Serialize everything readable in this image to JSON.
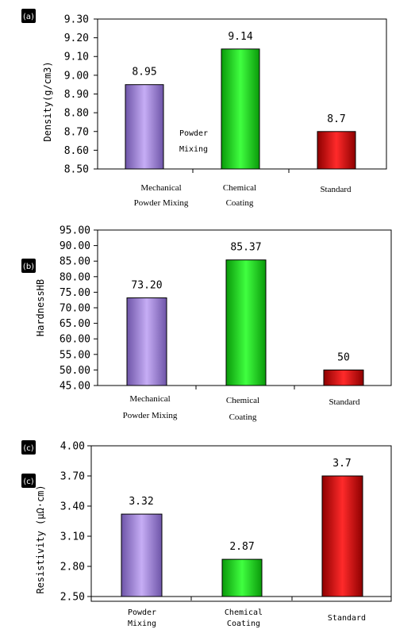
{
  "colors": {
    "purple": "#a98ae6",
    "green": "#22dd22",
    "red": "#dd1111"
  },
  "chart_data": [
    {
      "type": "bar",
      "panel_label": "(a)",
      "ylabel": "Density(g/cm3)",
      "ylim": [
        8.5,
        9.3
      ],
      "y_ticks": [
        "8.50",
        "8.60",
        "8.70",
        "8.80",
        "8.90",
        "9.00",
        "9.10",
        "9.20",
        "9.30"
      ],
      "categories": [
        [
          "Mechanical",
          "Powder Mixing"
        ],
        [
          "Chemical",
          "Coating"
        ],
        [
          "Standard"
        ]
      ],
      "values": [
        8.95,
        9.14,
        8.7
      ],
      "value_labels": [
        "8.95",
        "9.14",
        "8.7"
      ],
      "annotation": [
        "Powder",
        "Mixing"
      ]
    },
    {
      "type": "bar",
      "panel_label": "(b)",
      "ylabel": "HardnessHB",
      "ylim": [
        45,
        95
      ],
      "y_ticks": [
        "45.00",
        "50.00",
        "55.00",
        "60.00",
        "65.00",
        "70.00",
        "75.00",
        "80.00",
        "85.00",
        "90.00",
        "95.00"
      ],
      "categories": [
        [
          "Mechanical",
          "Powder Mixing"
        ],
        [
          "Chemical",
          "Coating"
        ],
        [
          "Standard"
        ]
      ],
      "values": [
        73.2,
        85.37,
        50
      ],
      "value_labels": [
        "73.20",
        "85.37",
        "50"
      ]
    },
    {
      "type": "bar",
      "panel_label": "(c)",
      "panel_label_duplicate": "(c)",
      "ylabel": "Resistivity (μΩ·cm)",
      "ylim": [
        2.5,
        4.0
      ],
      "y_ticks": [
        "2.50",
        "2.80",
        "3.10",
        "3.40",
        "3.70",
        "4.00"
      ],
      "categories": [
        [
          "Powder",
          "Mixing"
        ],
        [
          "Chemical",
          "Coating"
        ],
        [
          "Standard"
        ]
      ],
      "values": [
        3.32,
        2.87,
        3.7
      ],
      "value_labels": [
        "3.32",
        "2.87",
        "3.7"
      ]
    }
  ]
}
